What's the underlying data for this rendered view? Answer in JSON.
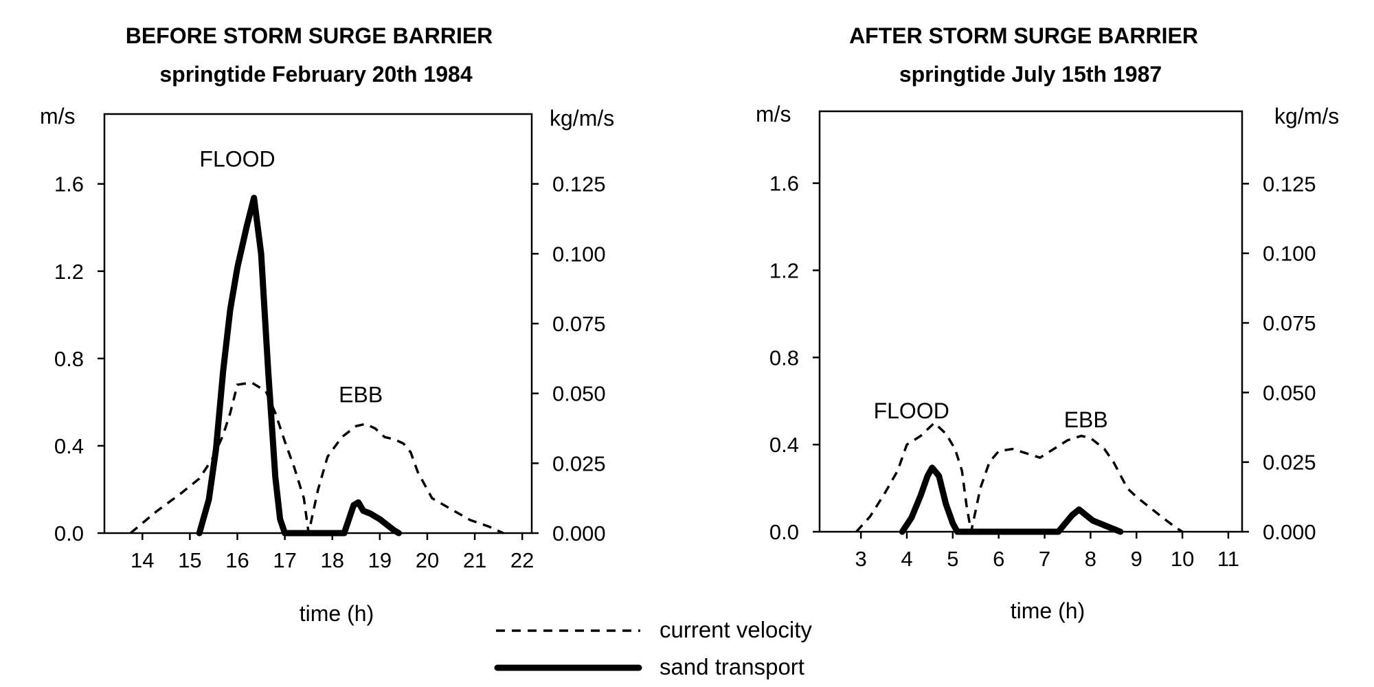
{
  "legend": {
    "velocity_label": "current velocity",
    "sand_label": "sand transport"
  },
  "chart_data": [
    {
      "type": "line",
      "title": "BEFORE STORM SURGE BARRIER",
      "subtitle": "springtide February 20th 1984",
      "xlabel": "time (h)",
      "ylabel_left": "m/s",
      "ylabel_right": "kg/m/s",
      "xlim": [
        13.2,
        22.2
      ],
      "ylim_left": [
        0,
        1.92
      ],
      "ylim_right": [
        0,
        0.15
      ],
      "x_ticks": [
        14,
        15,
        16,
        17,
        18,
        19,
        20,
        21,
        22
      ],
      "y_ticks_left": [
        "0.0",
        "0.4",
        "0.8",
        "1.2",
        "1.6"
      ],
      "y_ticks_right": [
        "0.000",
        "0.025",
        "0.050",
        "0.075",
        "0.100",
        "0.125"
      ],
      "annotations": [
        {
          "text": "FLOOD",
          "x": 16.0,
          "y": 1.68
        },
        {
          "text": "EBB",
          "x": 18.6,
          "y": 0.6
        }
      ],
      "series": [
        {
          "name": "current velocity",
          "axis": "left",
          "x": [
            13.75,
            14.3,
            14.8,
            15.2,
            15.5,
            15.7,
            15.85,
            16.0,
            16.3,
            16.6,
            16.8,
            17.0,
            17.2,
            17.4,
            17.5,
            17.7,
            17.9,
            18.2,
            18.5,
            18.7,
            18.9,
            19.1,
            19.3,
            19.5,
            19.65,
            19.8,
            20.1,
            20.5,
            20.9,
            21.3,
            21.6
          ],
          "y": [
            0.0,
            0.1,
            0.18,
            0.25,
            0.35,
            0.45,
            0.55,
            0.68,
            0.69,
            0.65,
            0.55,
            0.42,
            0.3,
            0.16,
            0.0,
            0.2,
            0.35,
            0.44,
            0.49,
            0.5,
            0.48,
            0.44,
            0.43,
            0.41,
            0.37,
            0.28,
            0.16,
            0.11,
            0.06,
            0.03,
            0.0
          ]
        },
        {
          "name": "sand transport",
          "axis": "right",
          "x": [
            15.2,
            15.4,
            15.55,
            15.7,
            15.85,
            16.0,
            16.2,
            16.35,
            16.5,
            16.65,
            16.8,
            16.9,
            17.0,
            18.25,
            18.35,
            18.45,
            18.55,
            18.65,
            18.8,
            19.0,
            19.15,
            19.3,
            19.4
          ],
          "y": [
            0.0,
            0.012,
            0.03,
            0.058,
            0.08,
            0.095,
            0.11,
            0.12,
            0.1,
            0.058,
            0.02,
            0.005,
            0.0,
            0.0,
            0.005,
            0.01,
            0.011,
            0.008,
            0.007,
            0.005,
            0.003,
            0.001,
            0.0
          ]
        }
      ]
    },
    {
      "type": "line",
      "title": "AFTER STORM SURGE BARRIER",
      "subtitle": "springtide July 15th 1987",
      "xlabel": "time (h)",
      "ylabel_left": "m/s",
      "ylabel_right": "kg/m/s",
      "xlim": [
        2.1,
        11.3
      ],
      "ylim_left": [
        0,
        1.93
      ],
      "ylim_right": [
        0,
        0.151
      ],
      "x_ticks": [
        3,
        4,
        5,
        6,
        7,
        8,
        9,
        10,
        11
      ],
      "y_ticks_left": [
        "0.0",
        "0.4",
        "0.8",
        "1.2",
        "1.6"
      ],
      "y_ticks_right": [
        "0.000",
        "0.025",
        "0.050",
        "0.075",
        "0.100",
        "0.125"
      ],
      "annotations": [
        {
          "text": "FLOOD",
          "x": 4.1,
          "y": 0.52
        },
        {
          "text": "EBB",
          "x": 7.9,
          "y": 0.48
        }
      ],
      "series": [
        {
          "name": "current velocity",
          "axis": "left",
          "x": [
            2.9,
            3.2,
            3.5,
            3.8,
            4.0,
            4.3,
            4.6,
            4.85,
            5.05,
            5.2,
            5.3,
            5.4,
            5.6,
            5.8,
            6.0,
            6.3,
            6.6,
            6.9,
            7.2,
            7.5,
            7.8,
            8.0,
            8.3,
            8.5,
            8.8,
            9.0,
            9.3,
            9.6,
            9.85,
            10.0
          ],
          "y": [
            0.0,
            0.07,
            0.17,
            0.28,
            0.4,
            0.44,
            0.5,
            0.45,
            0.38,
            0.28,
            0.12,
            0.0,
            0.2,
            0.32,
            0.37,
            0.38,
            0.36,
            0.34,
            0.38,
            0.42,
            0.44,
            0.43,
            0.38,
            0.32,
            0.2,
            0.16,
            0.11,
            0.06,
            0.02,
            0.0
          ]
        },
        {
          "name": "sand transport",
          "axis": "right",
          "x": [
            3.9,
            4.1,
            4.3,
            4.45,
            4.55,
            4.7,
            4.85,
            5.0,
            5.1,
            7.3,
            7.45,
            7.6,
            7.75,
            7.9,
            8.05,
            8.2,
            8.35,
            8.5,
            8.65
          ],
          "y": [
            0.0,
            0.005,
            0.013,
            0.02,
            0.023,
            0.02,
            0.01,
            0.003,
            0.0,
            0.0,
            0.003,
            0.006,
            0.008,
            0.006,
            0.004,
            0.003,
            0.002,
            0.001,
            0.0
          ]
        }
      ]
    }
  ]
}
